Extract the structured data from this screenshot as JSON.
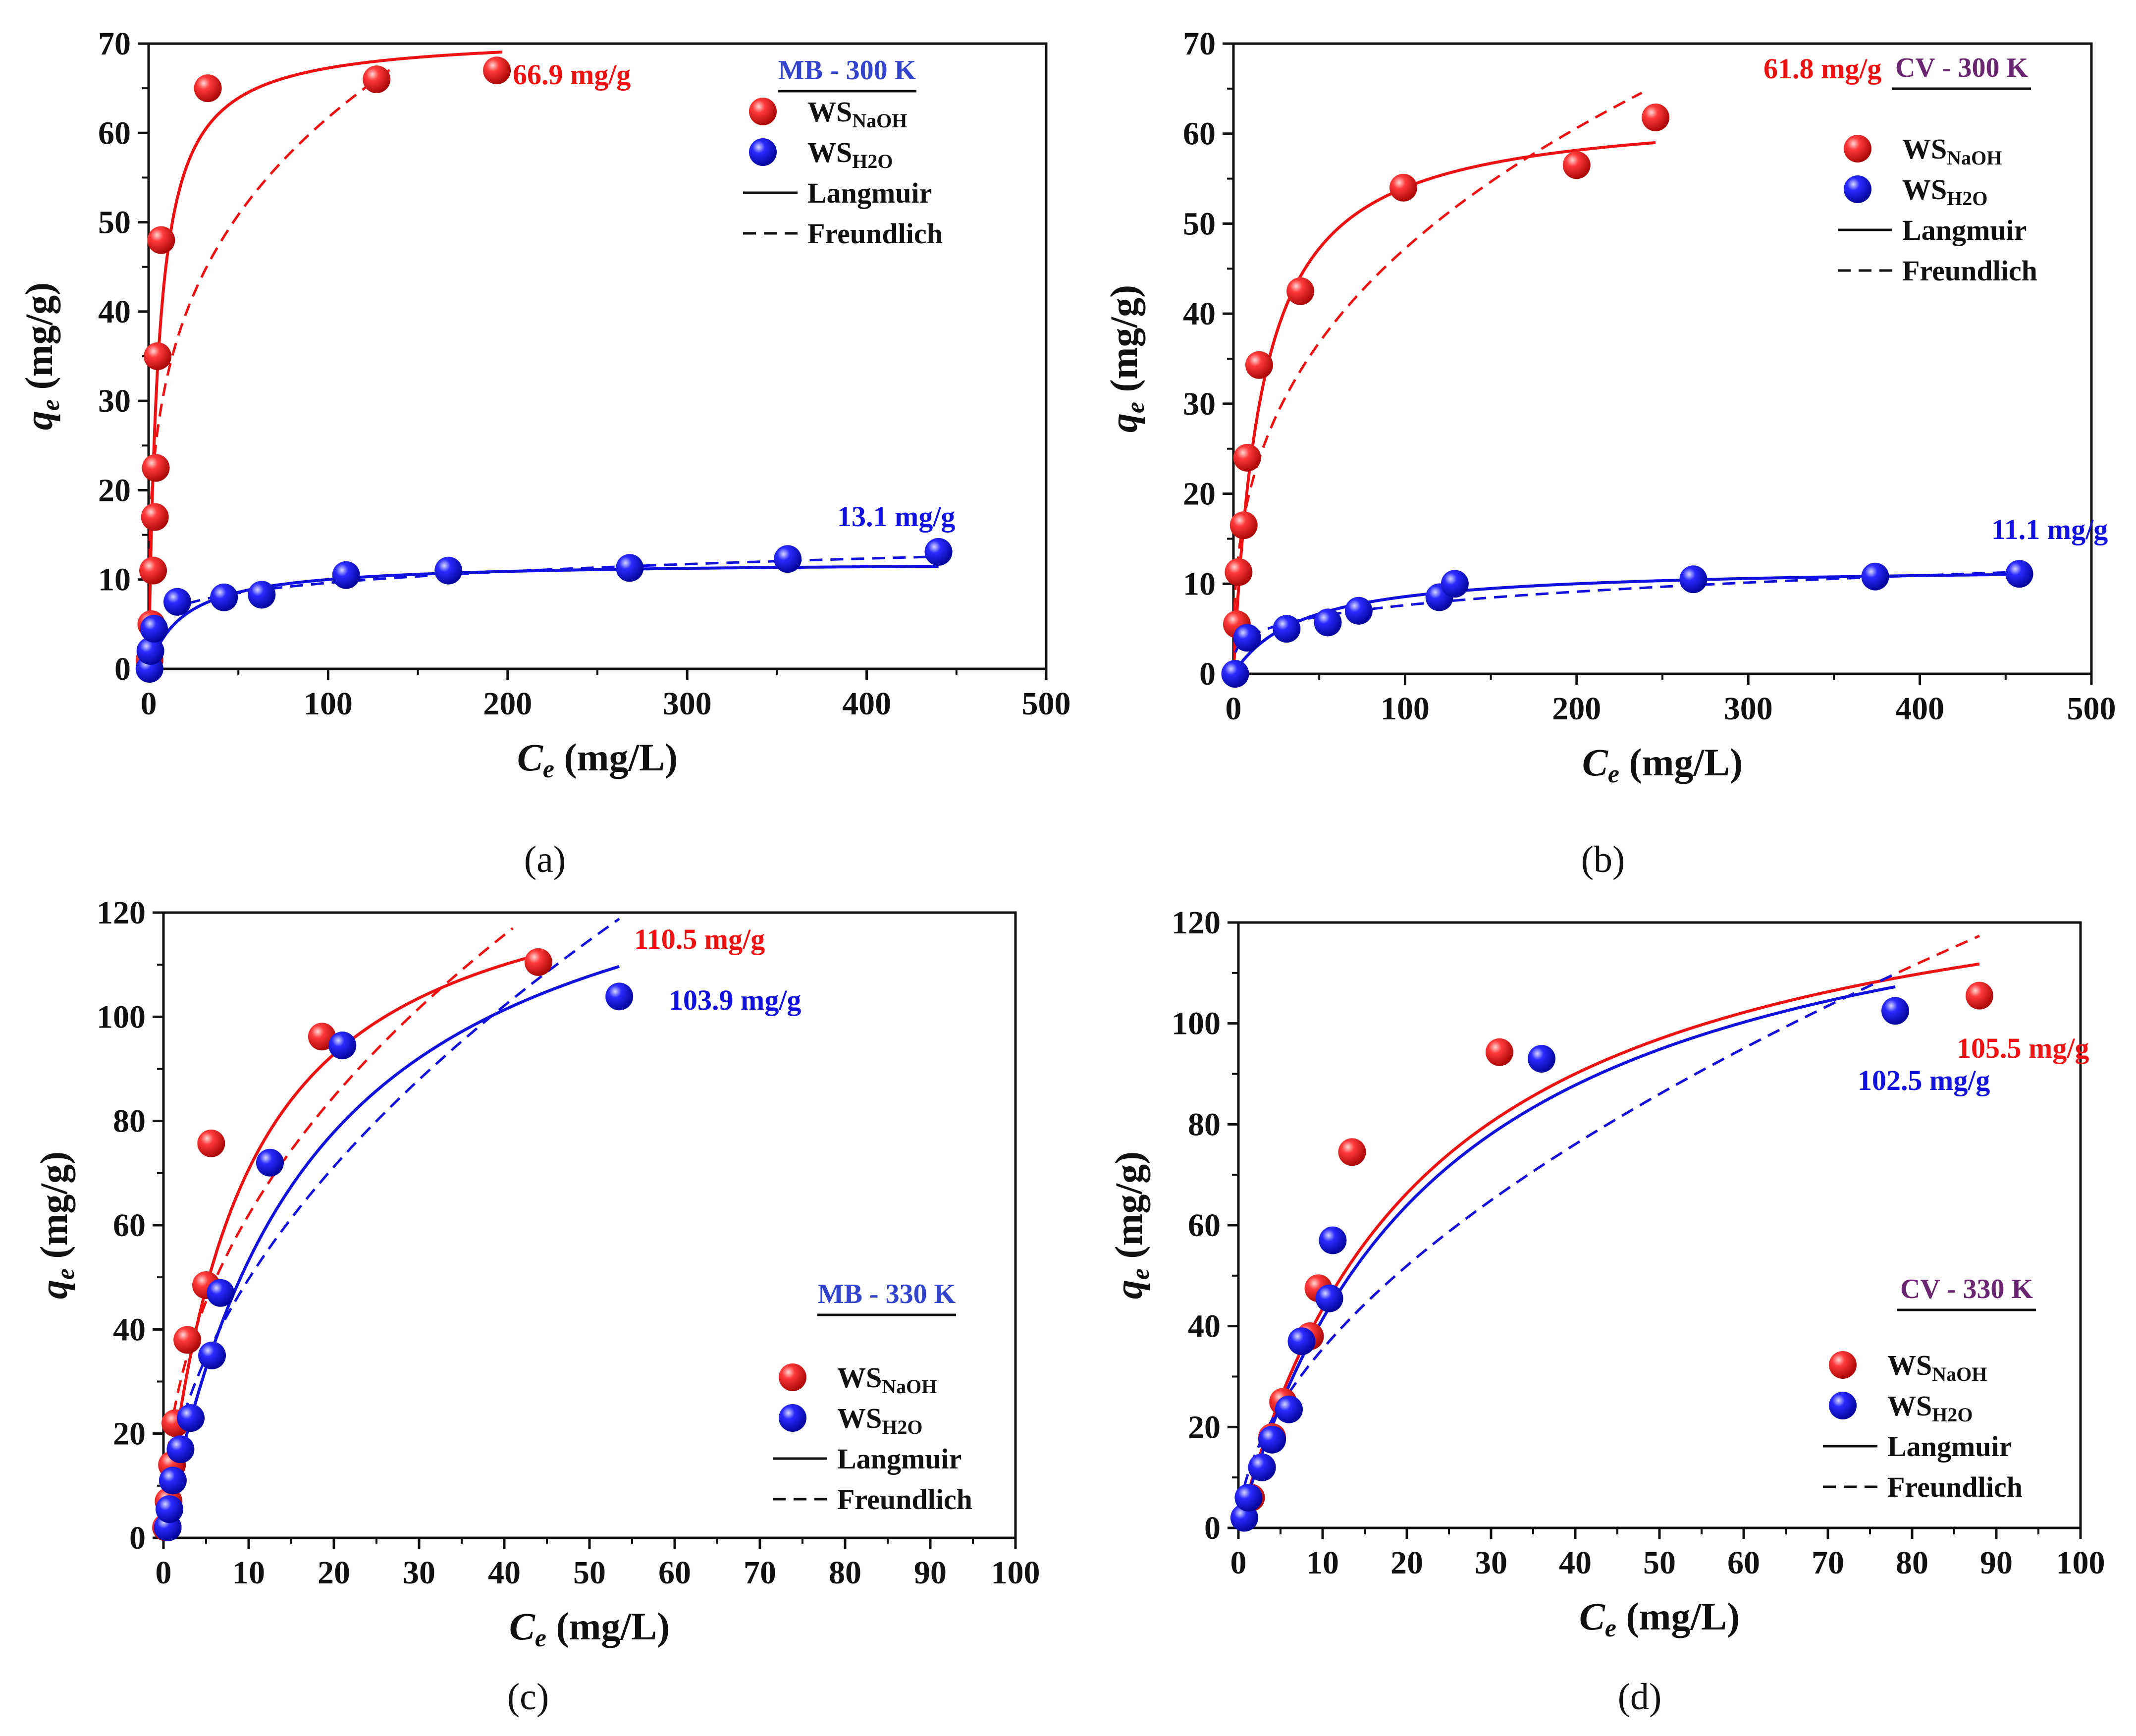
{
  "figure": {
    "colors": {
      "naoh": "#ee1111",
      "h2o": "#1111dd",
      "axis": "#111111",
      "badge_mb": "#3344cc",
      "badge_cv": "#6a2670"
    }
  },
  "chart_data": [
    {
      "id": "a",
      "type": "scatter",
      "panel_label": "(a)",
      "badge": "MB - 300 K",
      "badge_color": "#3344cc",
      "xlabel_italic": "C",
      "xlabel_sub": "e",
      "xlabel_rest": " (mg/L)",
      "ylabel_italic": "q",
      "ylabel_sub": "e",
      "ylabel_rest": " (mg/g)",
      "xlim": [
        0,
        500
      ],
      "ylim": [
        0,
        70
      ],
      "xticks": [
        0,
        100,
        200,
        300,
        400,
        500
      ],
      "yticks": [
        0,
        10,
        20,
        30,
        40,
        50,
        60,
        70
      ],
      "legend_placement": "top-right",
      "legend": {
        "naoh": "WS",
        "naoh_sub": "NaOH",
        "h2o": "WS",
        "h2o_sub": "H2O",
        "langmuir": "Langmuir",
        "freundlich": "Freundlich"
      },
      "series": [
        {
          "name": "WS NaOH",
          "color": "#ee1111",
          "points": [
            [
              0.5,
              1
            ],
            [
              1.5,
              5
            ],
            [
              2.5,
              11
            ],
            [
              3.5,
              17
            ],
            [
              4,
              22.5
            ],
            [
              5,
              35
            ],
            [
              7,
              48
            ],
            [
              33,
              65
            ],
            [
              127,
              66
            ],
            [
              194,
              67
            ]
          ],
          "langmuir": {
            "qmax": 71,
            "kl": 0.18,
            "xmax": 197
          },
          "freundlich": {
            "kf": 17,
            "n": 0.28,
            "xmax": 135
          },
          "annotation": "66.9 mg/g"
        },
        {
          "name": "WS H2O",
          "color": "#1111dd",
          "points": [
            [
              0.5,
              0
            ],
            [
              1,
              2
            ],
            [
              3,
              4.5
            ],
            [
              16,
              7.5
            ],
            [
              42,
              8
            ],
            [
              63,
              8.3
            ],
            [
              110,
              10.5
            ],
            [
              167,
              11
            ],
            [
              268,
              11.3
            ],
            [
              356,
              12.3
            ],
            [
              440,
              13.1
            ]
          ],
          "langmuir": {
            "qmax": 12,
            "kl": 0.05,
            "xmax": 440
          },
          "freundlich": {
            "kf": 4.2,
            "n": 0.18,
            "xmax": 440
          },
          "annotation": "13.1 mg/g"
        }
      ]
    },
    {
      "id": "b",
      "type": "scatter",
      "panel_label": "(b)",
      "badge": "CV - 300 K",
      "badge_color": "#6a2670",
      "xlabel_italic": "C",
      "xlabel_sub": "e",
      "xlabel_rest": " (mg/L)",
      "ylabel_italic": "q",
      "ylabel_sub": "e",
      "ylabel_rest": " (mg/g)",
      "xlim": [
        0,
        500
      ],
      "ylim": [
        0,
        70
      ],
      "xticks": [
        0,
        100,
        200,
        300,
        400,
        500
      ],
      "yticks": [
        0,
        10,
        20,
        30,
        40,
        50,
        60,
        70
      ],
      "legend_placement": "top-right",
      "legend": {
        "naoh": "WS",
        "naoh_sub": "NaOH",
        "h2o": "WS",
        "h2o_sub": "H2O",
        "langmuir": "Langmuir",
        "freundlich": "Freundlich"
      },
      "series": [
        {
          "name": "WS NaOH",
          "color": "#ee1111",
          "points": [
            [
              2,
              5.5
            ],
            [
              3,
              11.3
            ],
            [
              6,
              16.5
            ],
            [
              8,
              24
            ],
            [
              15,
              34.3
            ],
            [
              39,
              42.5
            ],
            [
              99,
              54
            ],
            [
              200,
              56.5
            ],
            [
              246,
              61.8
            ]
          ],
          "langmuir": {
            "qmax": 63,
            "kl": 0.06,
            "xmax": 246
          },
          "freundlich": {
            "kf": 9,
            "n": 0.36,
            "xmax": 238
          },
          "annotation": "61.8 mg/g"
        },
        {
          "name": "WS H2O",
          "color": "#1111dd",
          "points": [
            [
              1,
              0
            ],
            [
              8,
              4
            ],
            [
              31,
              5
            ],
            [
              55,
              5.7
            ],
            [
              73,
              7
            ],
            [
              120,
              8.5
            ],
            [
              129,
              10
            ],
            [
              268,
              10.5
            ],
            [
              374,
              10.8
            ],
            [
              458,
              11.1
            ]
          ],
          "langmuir": {
            "qmax": 12,
            "kl": 0.025,
            "xmax": 458
          },
          "freundlich": {
            "kf": 2.3,
            "n": 0.26,
            "xmax": 458
          },
          "annotation": "11.1 mg/g"
        }
      ]
    },
    {
      "id": "c",
      "type": "scatter",
      "panel_label": "(c)",
      "badge": "MB - 330 K",
      "badge_color": "#3344cc",
      "xlabel_italic": "C",
      "xlabel_sub": "e",
      "xlabel_rest": " (mg/L)",
      "ylabel_italic": "q",
      "ylabel_sub": "e",
      "ylabel_rest": " (mg/g)",
      "xlim": [
        0,
        100
      ],
      "ylim": [
        0,
        120
      ],
      "xticks": [
        0,
        10,
        20,
        30,
        40,
        50,
        60,
        70,
        80,
        90,
        100
      ],
      "yticks": [
        0,
        20,
        40,
        60,
        80,
        100,
        120
      ],
      "legend_placement": "bottom-right",
      "legend": {
        "naoh": "WS",
        "naoh_sub": "NaOH",
        "h2o": "WS",
        "h2o_sub": "H2O",
        "langmuir": "Langmuir",
        "freundlich": "Freundlich"
      },
      "series": [
        {
          "name": "WS NaOH",
          "color": "#ee1111",
          "points": [
            [
              0.3,
              2
            ],
            [
              0.6,
              7
            ],
            [
              1,
              14
            ],
            [
              1.4,
              22
            ],
            [
              2.8,
              38
            ],
            [
              5,
              48.5
            ],
            [
              5.6,
              75.7
            ],
            [
              18.6,
              96.2
            ],
            [
              44,
              110.5
            ]
          ],
          "langmuir": {
            "qmax": 135,
            "kl": 0.11,
            "xmax": 44
          },
          "freundlich": {
            "kf": 22,
            "n": 0.45,
            "xmax": 41
          },
          "annotation": "110.5 mg/g"
        },
        {
          "name": "WS H2O",
          "color": "#1111dd",
          "points": [
            [
              0.5,
              2
            ],
            [
              0.7,
              5.5
            ],
            [
              1.1,
              11
            ],
            [
              2,
              17
            ],
            [
              3.2,
              23
            ],
            [
              5.7,
              35
            ],
            [
              6.7,
              47
            ],
            [
              12.5,
              72
            ],
            [
              21,
              94.5
            ],
            [
              53.5,
              103.9
            ]
          ],
          "langmuir": {
            "qmax": 145,
            "kl": 0.058,
            "xmax": 53.5
          },
          "freundlich": {
            "kf": 15,
            "n": 0.52,
            "xmax": 53.5
          },
          "annotation": "103.9 mg/g"
        }
      ]
    },
    {
      "id": "d",
      "type": "scatter",
      "panel_label": "(d)",
      "badge": "CV - 330 K",
      "badge_color": "#6a2670",
      "xlabel_italic": "C",
      "xlabel_sub": "e",
      "xlabel_rest": " (mg/L)",
      "ylabel_italic": "q",
      "ylabel_sub": "e",
      "ylabel_rest": " (mg/g)",
      "xlim": [
        0,
        100
      ],
      "ylim": [
        0,
        120
      ],
      "xticks": [
        0,
        10,
        20,
        30,
        40,
        50,
        60,
        70,
        80,
        90,
        100
      ],
      "yticks": [
        0,
        20,
        40,
        60,
        80,
        100,
        120
      ],
      "legend_placement": "bottom-right",
      "legend": {
        "naoh": "WS",
        "naoh_sub": "NaOH",
        "h2o": "WS",
        "h2o_sub": "H2O",
        "langmuir": "Langmuir",
        "freundlich": "Freundlich"
      },
      "series": [
        {
          "name": "WS NaOH",
          "color": "#ee1111",
          "points": [
            [
              1.5,
              6
            ],
            [
              2.8,
              12
            ],
            [
              4,
              18
            ],
            [
              5.3,
              25
            ],
            [
              8.5,
              38
            ],
            [
              9.5,
              47.5
            ],
            [
              13.5,
              74.5
            ],
            [
              31,
              94.3
            ],
            [
              88,
              105.5
            ]
          ],
          "langmuir": {
            "qmax": 140,
            "kl": 0.045,
            "xmax": 88
          },
          "freundlich": {
            "kf": 10,
            "n": 0.55,
            "xmax": 88
          },
          "annotation": "105.5 mg/g"
        },
        {
          "name": "WS H2O",
          "color": "#1111dd",
          "points": [
            [
              0.7,
              2
            ],
            [
              1.2,
              6
            ],
            [
              2.8,
              12
            ],
            [
              4,
              17.5
            ],
            [
              6,
              23.5
            ],
            [
              7.5,
              37
            ],
            [
              10.8,
              45.5
            ],
            [
              11.2,
              57
            ],
            [
              36,
              93
            ],
            [
              78,
              102.5
            ]
          ],
          "langmuir": {
            "qmax": 140,
            "kl": 0.042,
            "xmax": 78
          },
          "freundlich": {
            "kf": 10,
            "n": 0.55,
            "xmax": 78
          },
          "annotation": "102.5 mg/g"
        }
      ]
    }
  ]
}
